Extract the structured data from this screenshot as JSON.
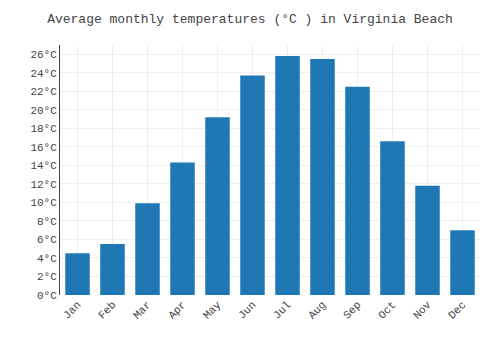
{
  "chart_data": {
    "type": "bar",
    "title": "Average monthly temperatures (°C ) in Virginia Beach",
    "categories": [
      "Jan",
      "Feb",
      "Mar",
      "Apr",
      "May",
      "Jun",
      "Jul",
      "Aug",
      "Sep",
      "Oct",
      "Nov",
      "Dec"
    ],
    "values": [
      4.5,
      5.5,
      9.9,
      14.3,
      19.2,
      23.7,
      25.8,
      25.5,
      22.5,
      16.6,
      11.8,
      7.0
    ],
    "ylim": [
      0,
      27
    ],
    "yticks": [
      {
        "value": 0,
        "label": "0°C"
      },
      {
        "value": 2,
        "label": "2°C"
      },
      {
        "value": 4,
        "label": "4°C"
      },
      {
        "value": 6,
        "label": "6°C"
      },
      {
        "value": 8,
        "label": "8°C"
      },
      {
        "value": 10,
        "label": "10°C"
      },
      {
        "value": 12,
        "label": "12°C"
      },
      {
        "value": 14,
        "label": "14°C"
      },
      {
        "value": 16,
        "label": "16°C"
      },
      {
        "value": 18,
        "label": "18°C"
      },
      {
        "value": 20,
        "label": "20°C"
      },
      {
        "value": 22,
        "label": "22°C"
      },
      {
        "value": 24,
        "label": "24°C"
      },
      {
        "value": 26,
        "label": "26°C"
      }
    ],
    "grid": true
  }
}
